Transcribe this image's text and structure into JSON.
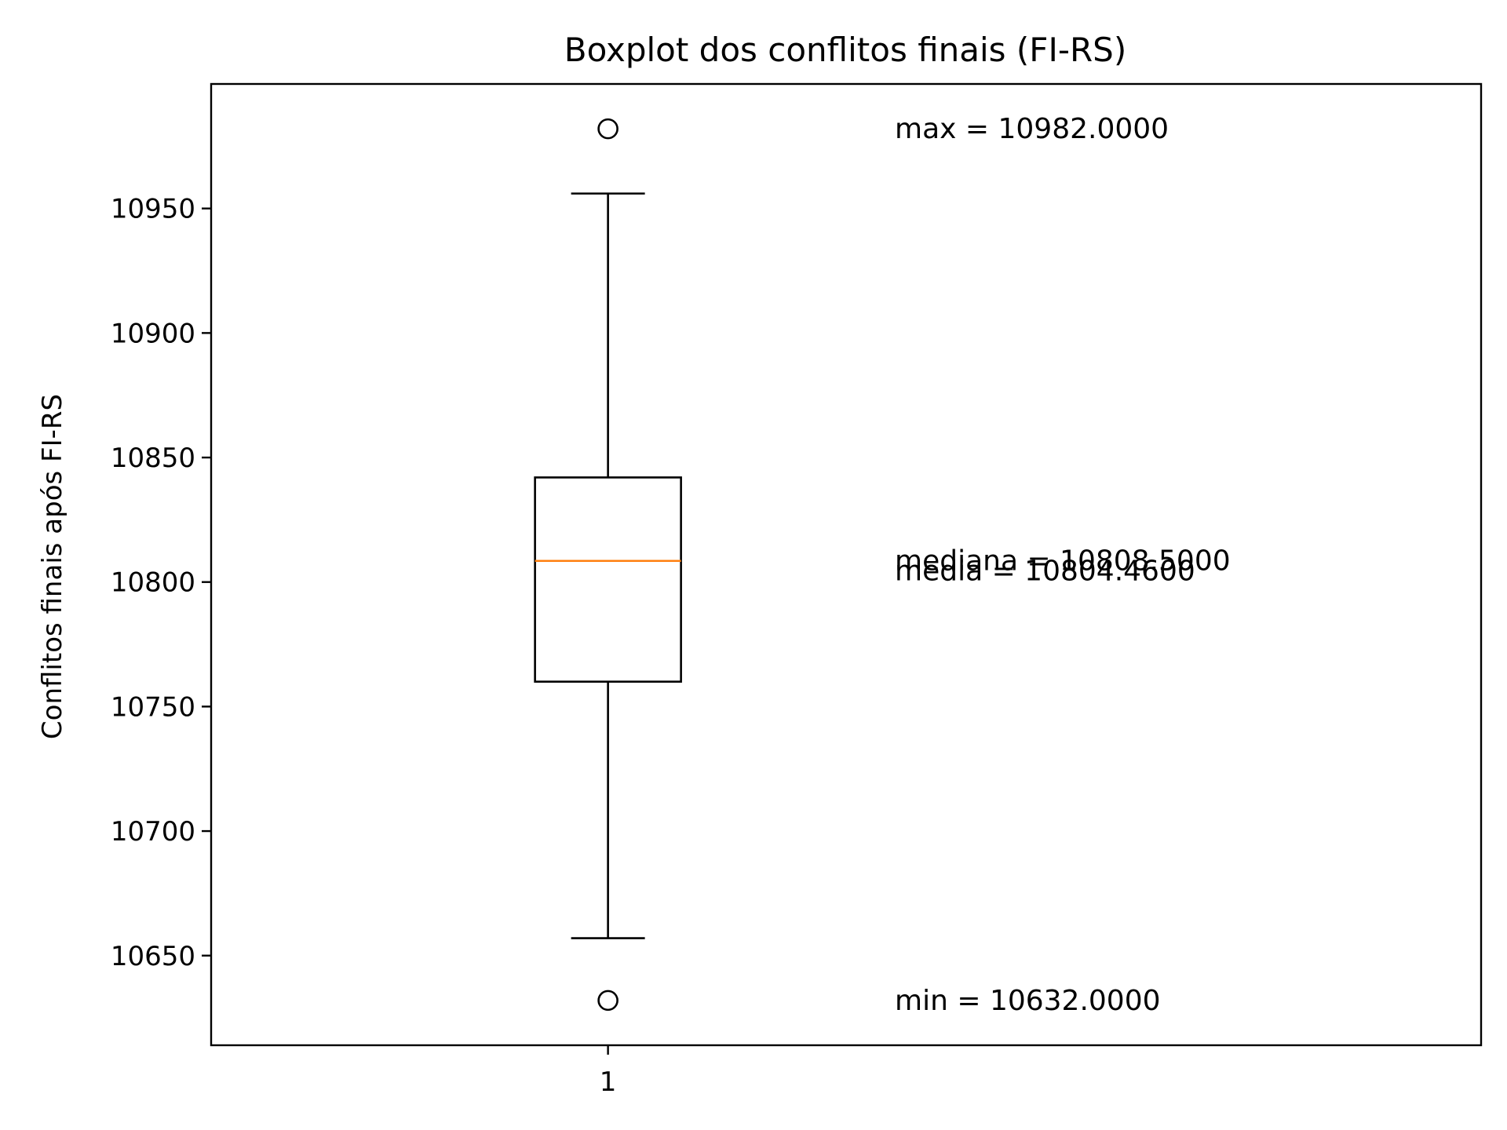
{
  "chart_data": {
    "type": "boxplot",
    "title": "Boxplot dos conflitos finais (FI-RS)",
    "xlabel": "",
    "ylabel": "Conflitos finais após FI-RS",
    "categories": [
      "1"
    ],
    "ylim": [
      10614,
      11000
    ],
    "yticks": [
      10650,
      10700,
      10750,
      10800,
      10850,
      10900,
      10950
    ],
    "grid": false,
    "box": {
      "whisker_low": 10657,
      "q1": 10760,
      "median": 10808.5,
      "q3": 10842,
      "whisker_high": 10956,
      "outliers": [
        10982,
        10632
      ]
    },
    "annotations": [
      {
        "text": "max = 10982.0000",
        "y": 10982
      },
      {
        "text": "mediana = 10808.5000",
        "y": 10808.5
      },
      {
        "text": "media = 10804.4600",
        "y": 10804.46
      },
      {
        "text": "min = 10632.0000",
        "y": 10632
      }
    ],
    "colors": {
      "box": "#000000",
      "median": "#ff7f0e"
    }
  }
}
